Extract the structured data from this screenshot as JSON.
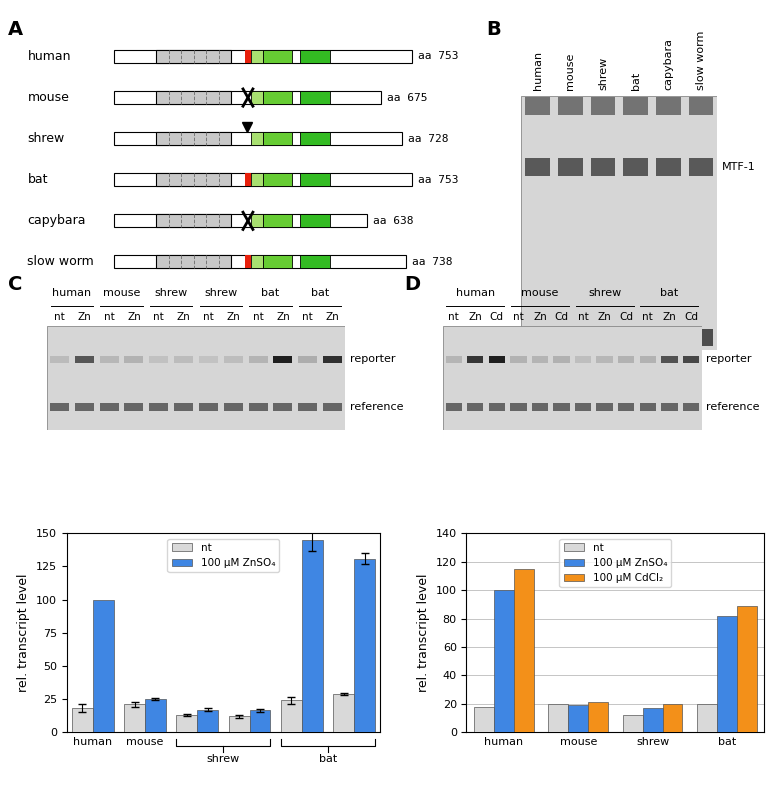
{
  "panels": [
    "A",
    "B",
    "C",
    "D"
  ],
  "diagram_A": {
    "rows": [
      {
        "name": "human",
        "length": 753,
        "length_label": "aa 753",
        "mark": "red"
      },
      {
        "name": "mouse",
        "length": 675,
        "length_label": "aa 675",
        "mark": "deletion"
      },
      {
        "name": "shrew",
        "length": 728,
        "length_label": "aa 728",
        "mark": "insertion"
      },
      {
        "name": "bat",
        "length": 753,
        "length_label": "aa 753",
        "mark": "red"
      },
      {
        "name": "capybara",
        "length": 638,
        "length_label": "aa 638",
        "mark": "deletion"
      },
      {
        "name": "slow worm",
        "length": 738,
        "length_label": "aa 738",
        "mark": "red"
      }
    ]
  },
  "gel_B": {
    "lanes": [
      "human",
      "mouse",
      "shrew",
      "bat",
      "capybara",
      "slow worm"
    ],
    "band_label": "MTF-1"
  },
  "gel_C": {
    "lane_groups": [
      "human",
      "mouse",
      "shrew",
      "shrew",
      "bat",
      "bat"
    ],
    "lanes": [
      "nt",
      "Zn"
    ],
    "bands": [
      "reporter",
      "reference"
    ]
  },
  "gel_D": {
    "lane_groups": [
      "human",
      "mouse",
      "shrew",
      "bat"
    ],
    "lanes": [
      "nt",
      "Zn",
      "Cd"
    ],
    "bands": [
      "reporter",
      "reference"
    ]
  },
  "chart_data": [
    {
      "type": "bar",
      "categories": [
        "human",
        "mouse",
        null,
        null,
        null,
        null
      ],
      "brackets": [
        {
          "label": "shrew",
          "positions": [
            2,
            3
          ]
        },
        {
          "label": "bat",
          "positions": [
            4,
            5
          ]
        }
      ],
      "y_label": "rel. transcript level",
      "ylim": [
        0,
        150
      ],
      "yticks": [
        0,
        25,
        50,
        75,
        100,
        125,
        150
      ],
      "grid": false,
      "legend": "upper center",
      "series": [
        {
          "name": "nt",
          "color": "#d9d9d9",
          "values": [
            18,
            21,
            13,
            12,
            24,
            29
          ],
          "errors": [
            3,
            2,
            1,
            1,
            3,
            1
          ]
        },
        {
          "name": "100 μM ZnSO₄",
          "color": "#3f86e3",
          "values": [
            100,
            25,
            17,
            16.5,
            145,
            131
          ],
          "errors": [
            null,
            1,
            1,
            1,
            8,
            4
          ]
        }
      ]
    },
    {
      "type": "bar",
      "categories": [
        "human",
        "mouse",
        "shrew",
        "bat"
      ],
      "y_label": "rel. transcript level",
      "ylim": [
        0,
        140
      ],
      "yticks": [
        0,
        20,
        40,
        60,
        80,
        100,
        120,
        140
      ],
      "grid": true,
      "legend": "upper center",
      "series": [
        {
          "name": "nt",
          "color": "#d9d9d9",
          "values": [
            18,
            20,
            12,
            20
          ]
        },
        {
          "name": "100 μM ZnSO₄",
          "color": "#3f86e3",
          "values": [
            100,
            19,
            17,
            82
          ]
        },
        {
          "name": "100 μM CdCl₂",
          "color": "#f39019",
          "values": [
            115,
            21,
            20,
            89
          ]
        }
      ]
    }
  ]
}
